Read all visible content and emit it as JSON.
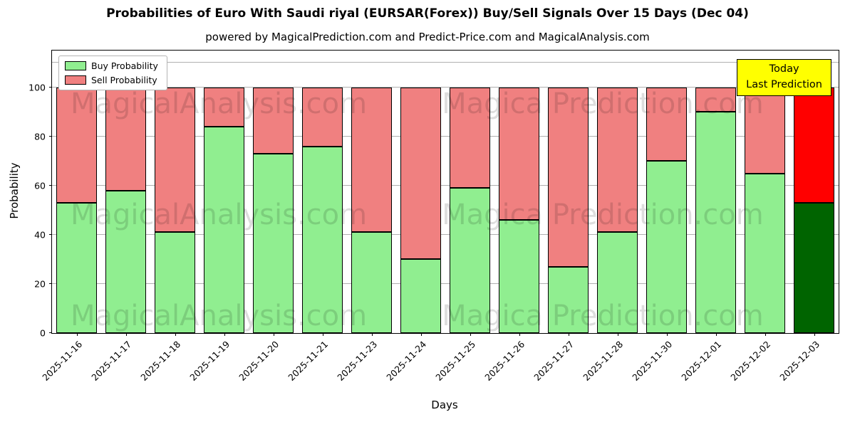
{
  "title": "Probabilities of Euro With Saudi riyal (EURSAR(Forex)) Buy/Sell Signals Over 15 Days (Dec 04)",
  "subtitle": "powered by MagicalPrediction.com and Predict-Price.com and MagicalAnalysis.com",
  "watermarks": [
    "MagicalAnalysis.com",
    "Magica Prediction.com"
  ],
  "annotation": {
    "line1": "Today",
    "line2": "Last Prediction",
    "bg": "#ffff00"
  },
  "legend": [
    {
      "label": "Buy Probability",
      "color": "#90ee90"
    },
    {
      "label": "Sell Probability",
      "color": "#f08080"
    }
  ],
  "chart_data": {
    "type": "bar",
    "stacked": true,
    "title": "Probabilities of Euro With Saudi riyal (EURSAR(Forex)) Buy/Sell Signals Over 15 Days (Dec 04)",
    "xlabel": "Days",
    "ylabel": "Probability",
    "categories": [
      "2025-11-16",
      "2025-11-17",
      "2025-11-18",
      "2025-11-19",
      "2025-11-20",
      "2025-11-21",
      "2025-11-23",
      "2025-11-24",
      "2025-11-25",
      "2025-11-26",
      "2025-11-27",
      "2025-11-28",
      "2025-11-30",
      "2025-12-01",
      "2025-12-02",
      "2025-12-03"
    ],
    "series": [
      {
        "name": "Buy Probability",
        "color": "#90ee90",
        "values": [
          53,
          58,
          41,
          84,
          73,
          76,
          41,
          30,
          59,
          46,
          27,
          41,
          70,
          90,
          65,
          53
        ]
      },
      {
        "name": "Sell Probability",
        "color": "#f08080",
        "values": [
          47,
          42,
          59,
          16,
          27,
          24,
          59,
          70,
          41,
          54,
          73,
          59,
          30,
          10,
          35,
          47
        ]
      }
    ],
    "last_bar_colors": {
      "buy": "#006400",
      "sell": "#ff0000"
    },
    "yticks": [
      0,
      20,
      40,
      60,
      80,
      100
    ],
    "ylim": [
      0,
      115
    ],
    "extra_gridline": 110,
    "grid": "horizontal",
    "legend_position": "upper-left"
  }
}
